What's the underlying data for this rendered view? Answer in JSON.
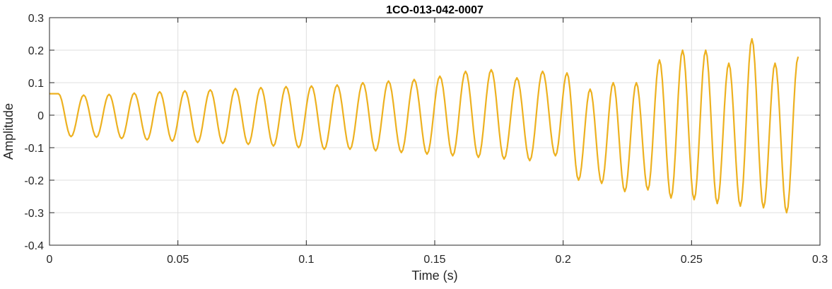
{
  "chart_data": {
    "type": "line",
    "title": "1CO-013-042-0007",
    "xlabel": "Time (s)",
    "ylabel": "Amplitude",
    "xlim": [
      0,
      0.3
    ],
    "ylim": [
      -0.4,
      0.3
    ],
    "x_ticks": [
      0,
      0.05,
      0.1,
      0.15,
      0.2,
      0.25,
      0.3
    ],
    "x_tick_labels": [
      "0",
      "0.05",
      "0.1",
      "0.15",
      "0.2",
      "0.25",
      "0.3"
    ],
    "y_ticks": [
      -0.4,
      -0.3,
      -0.2,
      -0.1,
      0,
      0.1,
      0.2,
      0.3
    ],
    "y_tick_labels": [
      "-0.4",
      "-0.3",
      "-0.2",
      "-0.1",
      "0",
      "0.1",
      "0.2",
      "0.3"
    ],
    "grid": true,
    "line_color": "#EDB120",
    "series": [
      {
        "name": "",
        "x_start": 0,
        "x_end": 0.292,
        "cycles": [
          [
            0.0035,
            0.066
          ],
          [
            0.0084,
            -0.066
          ],
          [
            0.0133,
            0.062
          ],
          [
            0.0183,
            -0.068
          ],
          [
            0.0232,
            0.064
          ],
          [
            0.0281,
            -0.072
          ],
          [
            0.033,
            0.068
          ],
          [
            0.038,
            -0.076
          ],
          [
            0.0429,
            0.072
          ],
          [
            0.0478,
            -0.08
          ],
          [
            0.0527,
            0.075
          ],
          [
            0.0577,
            -0.084
          ],
          [
            0.0626,
            0.078
          ],
          [
            0.0675,
            -0.087
          ],
          [
            0.0724,
            0.082
          ],
          [
            0.0774,
            -0.09
          ],
          [
            0.0823,
            0.085
          ],
          [
            0.0872,
            -0.095
          ],
          [
            0.0921,
            0.088
          ],
          [
            0.097,
            -0.1
          ],
          [
            0.102,
            0.09
          ],
          [
            0.107,
            -0.105
          ],
          [
            0.112,
            0.093
          ],
          [
            0.117,
            -0.105
          ],
          [
            0.122,
            0.1
          ],
          [
            0.127,
            -0.11
          ],
          [
            0.132,
            0.105
          ],
          [
            0.137,
            -0.115
          ],
          [
            0.142,
            0.11
          ],
          [
            0.147,
            -0.12
          ],
          [
            0.152,
            0.12
          ],
          [
            0.157,
            -0.125
          ],
          [
            0.162,
            0.135
          ],
          [
            0.167,
            -0.13
          ],
          [
            0.172,
            0.14
          ],
          [
            0.177,
            -0.135
          ],
          [
            0.182,
            0.115
          ],
          [
            0.187,
            -0.14
          ],
          [
            0.192,
            0.135
          ],
          [
            0.197,
            -0.125
          ],
          [
            0.2015,
            0.13
          ],
          [
            0.206,
            -0.2
          ],
          [
            0.2105,
            0.08
          ],
          [
            0.215,
            -0.21
          ],
          [
            0.2195,
            0.1
          ],
          [
            0.224,
            -0.235
          ],
          [
            0.2285,
            0.1
          ],
          [
            0.233,
            -0.23
          ],
          [
            0.2375,
            0.17
          ],
          [
            0.242,
            -0.255
          ],
          [
            0.2465,
            0.2
          ],
          [
            0.251,
            -0.26
          ],
          [
            0.2555,
            0.2
          ],
          [
            0.26,
            -0.272
          ],
          [
            0.2645,
            0.16
          ],
          [
            0.269,
            -0.28
          ],
          [
            0.2735,
            0.235
          ],
          [
            0.278,
            -0.285
          ],
          [
            0.2825,
            0.16
          ],
          [
            0.287,
            -0.3
          ],
          [
            0.2915,
            0.18
          ]
        ]
      }
    ]
  }
}
